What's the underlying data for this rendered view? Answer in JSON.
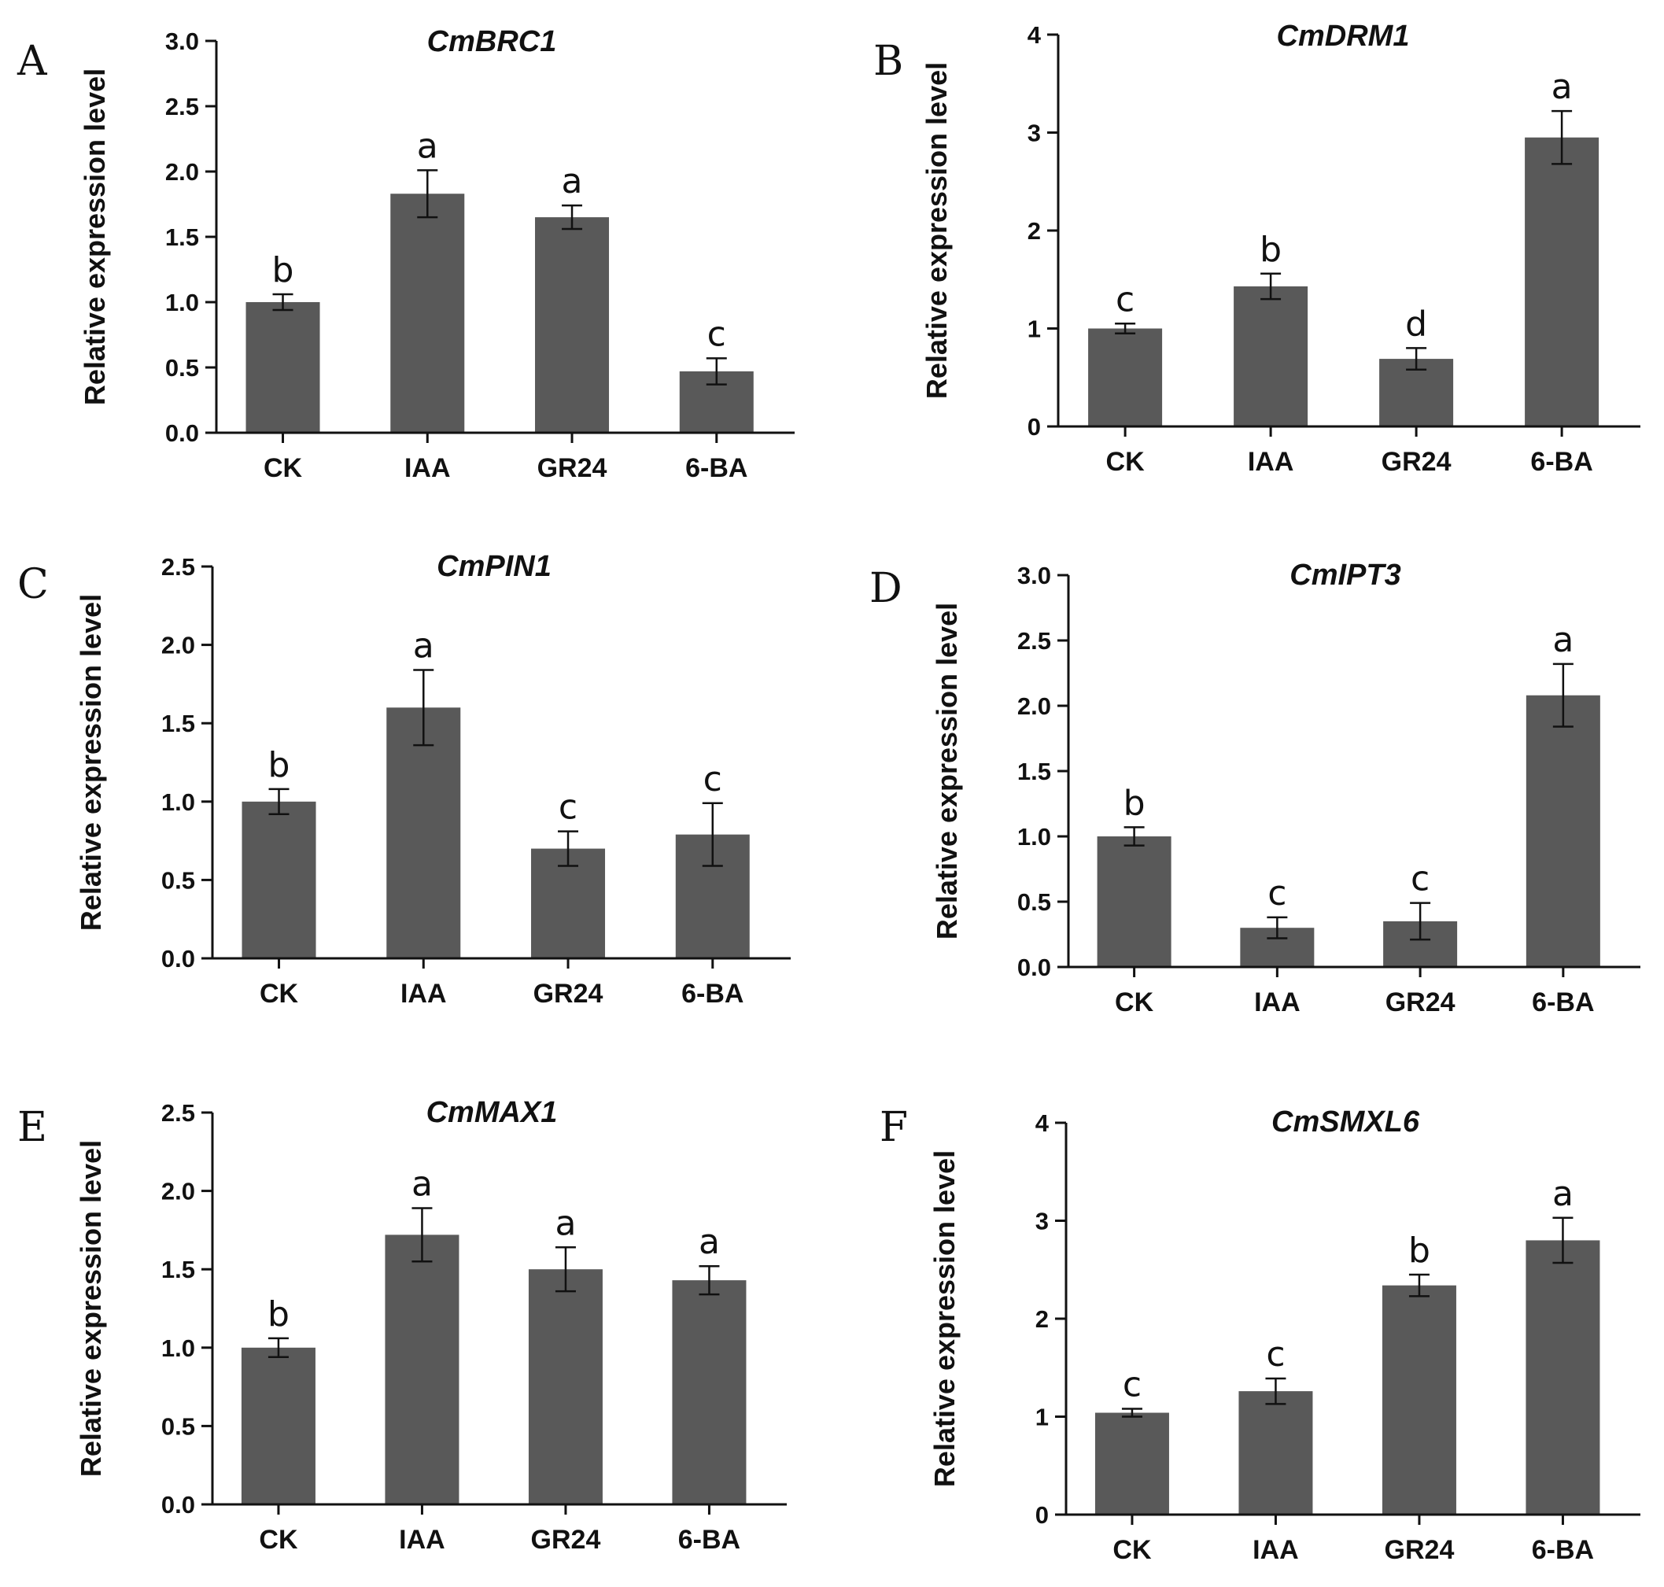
{
  "figure": {
    "categories": [
      "CK",
      "IAA",
      "GR24",
      "6-BA"
    ],
    "ylabel": "Relative expression level",
    "bar_color": "#595959",
    "text_color": "#111111"
  },
  "chart_data": [
    {
      "type": "bar",
      "panel": "A",
      "title": "CmBRC1",
      "ylabel": "Relative expression level",
      "categories": [
        "CK",
        "IAA",
        "GR24",
        "6-BA"
      ],
      "values": [
        1.0,
        1.83,
        1.65,
        0.47
      ],
      "errors": [
        0.06,
        0.18,
        0.09,
        0.1
      ],
      "significance": [
        "b",
        "a",
        "a",
        "c"
      ],
      "ylim": [
        0,
        3.0
      ],
      "yticks": [
        "0.0",
        "0.5",
        "1.0",
        "1.5",
        "2.0",
        "2.5",
        "3.0"
      ]
    },
    {
      "type": "bar",
      "panel": "B",
      "title": "CmDRM1",
      "ylabel": "Relative expression level",
      "categories": [
        "CK",
        "IAA",
        "GR24",
        "6-BA"
      ],
      "values": [
        1.0,
        1.43,
        0.69,
        2.95
      ],
      "errors": [
        0.05,
        0.13,
        0.11,
        0.27
      ],
      "significance": [
        "c",
        "b",
        "d",
        "a"
      ],
      "ylim": [
        0,
        4
      ],
      "yticks": [
        "0",
        "1",
        "2",
        "3",
        "4"
      ]
    },
    {
      "type": "bar",
      "panel": "C",
      "title": "CmPIN1",
      "ylabel": "Relative expression level",
      "categories": [
        "CK",
        "IAA",
        "GR24",
        "6-BA"
      ],
      "values": [
        1.0,
        1.6,
        0.7,
        0.79
      ],
      "errors": [
        0.08,
        0.24,
        0.11,
        0.2
      ],
      "significance": [
        "b",
        "a",
        "c",
        "c"
      ],
      "ylim": [
        0,
        2.5
      ],
      "yticks": [
        "0.0",
        "0.5",
        "1.0",
        "1.5",
        "2.0",
        "2.5"
      ]
    },
    {
      "type": "bar",
      "panel": "D",
      "title": "CmIPT3",
      "ylabel": "Relative expression level",
      "categories": [
        "CK",
        "IAA",
        "GR24",
        "6-BA"
      ],
      "values": [
        1.0,
        0.3,
        0.35,
        2.08
      ],
      "errors": [
        0.07,
        0.08,
        0.14,
        0.24
      ],
      "significance": [
        "b",
        "c",
        "c",
        "a"
      ],
      "ylim": [
        0,
        3.0
      ],
      "yticks": [
        "0.0",
        "0.5",
        "1.0",
        "1.5",
        "2.0",
        "2.5",
        "3.0"
      ]
    },
    {
      "type": "bar",
      "panel": "E",
      "title": "CmMAX1",
      "ylabel": "Relative expression level",
      "categories": [
        "CK",
        "IAA",
        "GR24",
        "6-BA"
      ],
      "values": [
        1.0,
        1.72,
        1.5,
        1.43
      ],
      "errors": [
        0.06,
        0.17,
        0.14,
        0.09
      ],
      "significance": [
        "b",
        "a",
        "a",
        "a"
      ],
      "ylim": [
        0,
        2.5
      ],
      "yticks": [
        "0.0",
        "0.5",
        "1.0",
        "1.5",
        "2.0",
        "2.5"
      ]
    },
    {
      "type": "bar",
      "panel": "F",
      "title": "CmSMXL6",
      "ylabel": "Relative expression level",
      "categories": [
        "CK",
        "IAA",
        "GR24",
        "6-BA"
      ],
      "values": [
        1.04,
        1.26,
        2.34,
        2.8
      ],
      "errors": [
        0.04,
        0.13,
        0.11,
        0.23
      ],
      "significance": [
        "c",
        "c",
        "b",
        "a"
      ],
      "ylim": [
        0,
        4
      ],
      "yticks": [
        "0",
        "1",
        "2",
        "3",
        "4"
      ]
    }
  ]
}
